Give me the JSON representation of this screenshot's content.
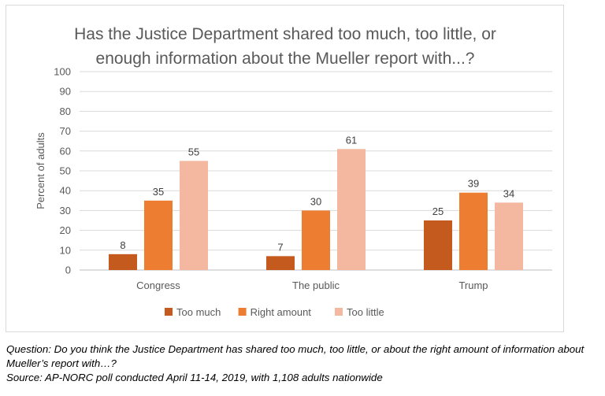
{
  "chart_data": {
    "type": "bar",
    "title_lines": [
      "Has the Justice Department shared too much, too little, or",
      "enough information about the Mueller report with...?"
    ],
    "ylabel": "Percent of adults",
    "xlabel": "",
    "ylim": [
      0,
      100
    ],
    "yticks": [
      0,
      10,
      20,
      30,
      40,
      50,
      60,
      70,
      80,
      90,
      100
    ],
    "grid": true,
    "legend_position": "bottom",
    "categories": [
      "Congress",
      "The public",
      "Trump"
    ],
    "series": [
      {
        "name": "Too much",
        "color": "#c55a1f",
        "values": [
          8,
          7,
          25
        ]
      },
      {
        "name": "Right amount",
        "color": "#ed7d31",
        "values": [
          35,
          30,
          39
        ]
      },
      {
        "name": "Too little",
        "color": "#f4b8a0",
        "values": [
          55,
          61,
          34
        ]
      }
    ]
  },
  "notes": {
    "question_line1": "Question: Do you think the Justice Department has shared too much, too little, or about the right amount of information about",
    "question_line2": "Mueller’s report with…?",
    "source": "Source: AP-NORC poll conducted April 11-14, 2019, with 1,108 adults nationwide"
  }
}
